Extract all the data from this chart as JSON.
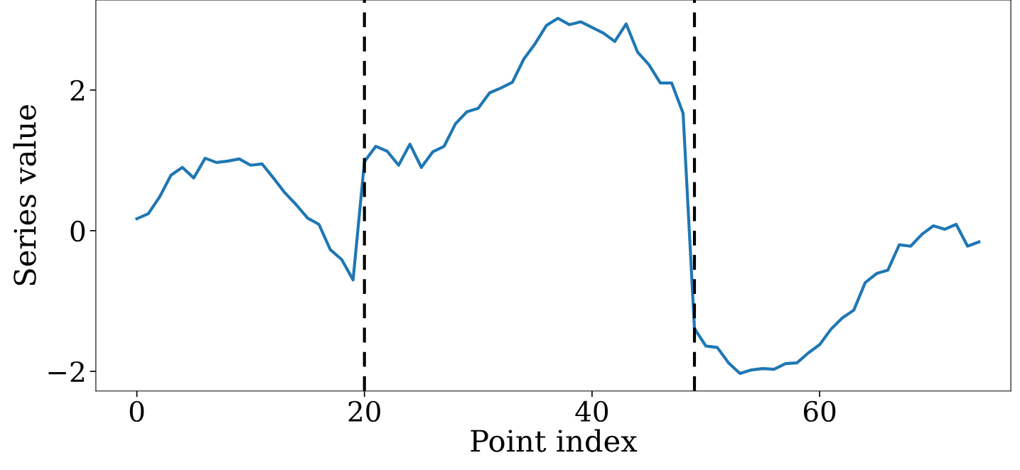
{
  "chart_data": {
    "type": "line",
    "xlabel": "Point index",
    "ylabel": "Series value",
    "x": [
      0,
      1,
      2,
      3,
      4,
      5,
      6,
      7,
      8,
      9,
      10,
      11,
      12,
      13,
      14,
      15,
      16,
      17,
      18,
      19,
      20,
      21,
      22,
      23,
      24,
      25,
      26,
      27,
      28,
      29,
      30,
      31,
      32,
      33,
      34,
      35,
      36,
      37,
      38,
      39,
      40,
      41,
      42,
      43,
      44,
      45,
      46,
      47,
      48,
      49,
      50,
      51,
      52,
      53,
      54,
      55,
      56,
      57,
      58,
      59,
      60,
      61,
      62,
      63,
      64,
      65,
      66,
      67,
      68,
      69,
      70,
      71,
      72,
      73,
      74
    ],
    "series": [
      {
        "color": "#1f77b4",
        "values": [
          0.17,
          0.24,
          0.48,
          0.79,
          0.9,
          0.75,
          1.03,
          0.97,
          0.99,
          1.02,
          0.93,
          0.95,
          0.75,
          0.54,
          0.37,
          0.18,
          0.09,
          -0.27,
          -0.41,
          -0.7,
          0.98,
          1.2,
          1.13,
          0.93,
          1.23,
          0.9,
          1.12,
          1.2,
          1.52,
          1.69,
          1.74,
          1.96,
          2.03,
          2.11,
          2.44,
          2.66,
          2.92,
          3.02,
          2.93,
          2.97,
          2.89,
          2.81,
          2.69,
          2.94,
          2.54,
          2.36,
          2.1,
          2.1,
          1.67,
          -1.39,
          -1.64,
          -1.66,
          -1.88,
          -2.03,
          -1.98,
          -1.96,
          -1.97,
          -1.89,
          -1.88,
          -1.74,
          -1.62,
          -1.4,
          -1.24,
          -1.13,
          -0.74,
          -0.61,
          -0.56,
          -0.2,
          -0.22,
          -0.05,
          0.07,
          0.02,
          0.09,
          -0.22,
          -0.16
        ]
      }
    ],
    "xlim": [
      -3.6,
      76.8
    ],
    "ylim": [
      -2.28,
      3.28
    ],
    "xticks": [
      0,
      20,
      40,
      60
    ],
    "yticks": [
      {
        "value": -2,
        "label": "−2"
      },
      0,
      2
    ],
    "ref_lines": [
      {
        "axis": "x",
        "value": 20,
        "color": "#000000",
        "line_style": "dashed"
      },
      {
        "axis": "x",
        "value": 49,
        "color": "#000000",
        "line_style": "dashed"
      }
    ],
    "grid": false,
    "legend": false,
    "marker": "none",
    "line_style": "solid"
  }
}
